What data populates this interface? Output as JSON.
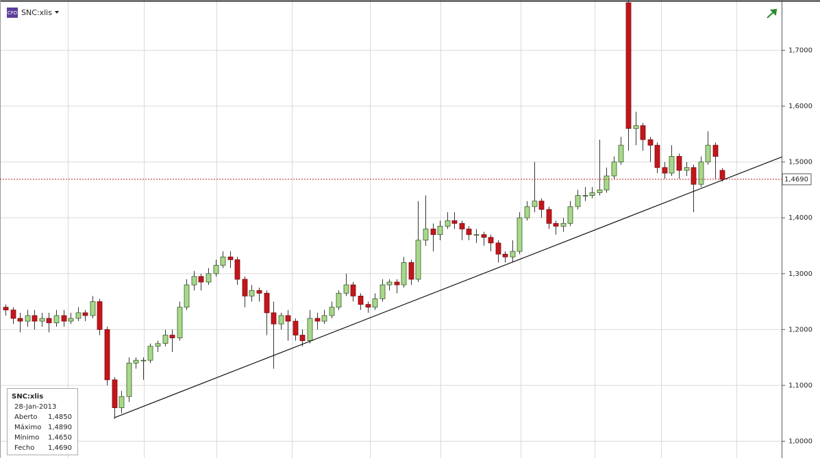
{
  "chart_data": {
    "type": "candlestick",
    "symbol": "SNC:xlis",
    "badge": "CFD",
    "ylim": [
      0.97,
      1.79
    ],
    "yticks": [
      {
        "value": 1.0,
        "label": "1,0000"
      },
      {
        "value": 1.1,
        "label": "1,1000"
      },
      {
        "value": 1.2,
        "label": "1,2000"
      },
      {
        "value": 1.3,
        "label": "1,3000"
      },
      {
        "value": 1.4,
        "label": "1,4000"
      },
      {
        "value": 1.5,
        "label": "1,5000"
      },
      {
        "value": 1.6,
        "label": "1,6000"
      },
      {
        "value": 1.7,
        "label": "1,7000"
      }
    ],
    "grid": true,
    "up_color": "#a8d88a",
    "down_color": "#c3161c",
    "open": [
      1.24,
      1.235,
      1.22,
      1.215,
      1.225,
      1.215,
      1.22,
      1.212,
      1.225,
      1.215,
      1.22,
      1.23,
      1.225,
      1.25,
      1.2,
      1.11,
      1.06,
      1.08,
      1.14,
      1.145,
      1.145,
      1.17,
      1.175,
      1.19,
      1.185,
      1.24,
      1.28,
      1.295,
      1.285,
      1.3,
      1.315,
      1.33,
      1.325,
      1.29,
      1.26,
      1.27,
      1.265,
      1.23,
      1.21,
      1.225,
      1.215,
      1.19,
      1.18,
      1.22,
      1.215,
      1.225,
      1.24,
      1.265,
      1.28,
      1.26,
      1.245,
      1.24,
      1.255,
      1.28,
      1.285,
      1.28,
      1.32,
      1.29,
      1.36,
      1.38,
      1.37,
      1.385,
      1.395,
      1.39,
      1.38,
      1.37,
      1.37,
      1.365,
      1.355,
      1.335,
      1.33,
      1.34,
      1.4,
      1.42,
      1.43,
      1.415,
      1.39,
      1.385,
      1.39,
      1.42,
      1.44,
      1.44,
      1.445,
      1.45,
      1.475,
      1.5,
      1.785,
      1.56,
      1.565,
      1.54,
      1.53,
      1.49,
      1.48,
      1.51,
      1.485,
      1.49,
      1.46,
      1.5,
      1.53,
      1.485
    ],
    "high": [
      1.245,
      1.24,
      1.23,
      1.235,
      1.235,
      1.23,
      1.23,
      1.235,
      1.235,
      1.23,
      1.24,
      1.235,
      1.26,
      1.255,
      1.205,
      1.115,
      1.09,
      1.15,
      1.15,
      1.15,
      1.175,
      1.18,
      1.2,
      1.2,
      1.25,
      1.29,
      1.305,
      1.3,
      1.31,
      1.325,
      1.34,
      1.34,
      1.33,
      1.295,
      1.28,
      1.275,
      1.27,
      1.25,
      1.23,
      1.235,
      1.22,
      1.2,
      1.235,
      1.23,
      1.235,
      1.25,
      1.27,
      1.3,
      1.285,
      1.265,
      1.25,
      1.265,
      1.29,
      1.29,
      1.29,
      1.33,
      1.325,
      1.43,
      1.44,
      1.39,
      1.395,
      1.41,
      1.41,
      1.395,
      1.385,
      1.38,
      1.375,
      1.37,
      1.36,
      1.34,
      1.36,
      1.41,
      1.43,
      1.5,
      1.435,
      1.42,
      1.395,
      1.4,
      1.43,
      1.45,
      1.455,
      1.455,
      1.54,
      1.49,
      1.51,
      1.545,
      1.79,
      1.59,
      1.57,
      1.545,
      1.535,
      1.5,
      1.53,
      1.515,
      1.5,
      1.495,
      1.51,
      1.555,
      1.535,
      1.489
    ],
    "low": [
      1.225,
      1.21,
      1.195,
      1.205,
      1.2,
      1.205,
      1.195,
      1.205,
      1.205,
      1.21,
      1.215,
      1.215,
      1.22,
      1.19,
      1.1,
      1.04,
      1.05,
      1.07,
      1.13,
      1.11,
      1.14,
      1.16,
      1.17,
      1.16,
      1.18,
      1.235,
      1.27,
      1.27,
      1.28,
      1.295,
      1.31,
      1.31,
      1.28,
      1.24,
      1.25,
      1.25,
      1.19,
      1.13,
      1.2,
      1.18,
      1.18,
      1.17,
      1.175,
      1.2,
      1.21,
      1.22,
      1.235,
      1.26,
      1.25,
      1.235,
      1.23,
      1.235,
      1.25,
      1.27,
      1.265,
      1.275,
      1.28,
      1.285,
      1.35,
      1.34,
      1.36,
      1.38,
      1.38,
      1.36,
      1.36,
      1.355,
      1.35,
      1.34,
      1.32,
      1.32,
      1.32,
      1.335,
      1.395,
      1.41,
      1.4,
      1.38,
      1.37,
      1.375,
      1.385,
      1.415,
      1.43,
      1.435,
      1.44,
      1.445,
      1.47,
      1.495,
      1.52,
      1.53,
      1.52,
      1.5,
      1.48,
      1.47,
      1.475,
      1.47,
      1.475,
      1.41,
      1.455,
      1.495,
      1.47,
      1.465
    ],
    "close": [
      1.235,
      1.22,
      1.215,
      1.225,
      1.215,
      1.22,
      1.212,
      1.225,
      1.215,
      1.22,
      1.23,
      1.225,
      1.25,
      1.2,
      1.11,
      1.06,
      1.08,
      1.14,
      1.145,
      1.145,
      1.17,
      1.175,
      1.19,
      1.185,
      1.24,
      1.28,
      1.295,
      1.285,
      1.3,
      1.315,
      1.33,
      1.325,
      1.29,
      1.26,
      1.27,
      1.265,
      1.23,
      1.21,
      1.225,
      1.215,
      1.19,
      1.18,
      1.22,
      1.215,
      1.225,
      1.24,
      1.265,
      1.28,
      1.26,
      1.245,
      1.24,
      1.255,
      1.28,
      1.285,
      1.28,
      1.32,
      1.29,
      1.36,
      1.38,
      1.37,
      1.385,
      1.395,
      1.39,
      1.38,
      1.37,
      1.37,
      1.365,
      1.355,
      1.335,
      1.33,
      1.34,
      1.4,
      1.42,
      1.43,
      1.415,
      1.39,
      1.385,
      1.39,
      1.42,
      1.44,
      1.44,
      1.445,
      1.45,
      1.475,
      1.5,
      1.53,
      1.56,
      1.565,
      1.54,
      1.53,
      1.49,
      1.48,
      1.51,
      1.485,
      1.49,
      1.46,
      1.5,
      1.53,
      1.51,
      1.469
    ],
    "trendline": {
      "x": [
        15,
        107.2
      ],
      "y": [
        1.042,
        1.509
      ]
    },
    "last_price": {
      "value": 1.469,
      "label": "1,4690"
    },
    "info": {
      "title": "SNC:xlis",
      "date": "28-Jan-2013",
      "rows": [
        [
          "Aberto",
          "1,4850"
        ],
        [
          "Máximo",
          "1,4890"
        ],
        [
          "Mínimo",
          "1,4650"
        ],
        [
          "Fecho",
          "1,4690"
        ]
      ]
    }
  }
}
